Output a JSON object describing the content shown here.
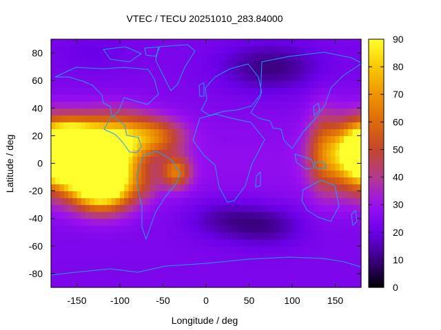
{
  "chart_data": {
    "type": "heatmap",
    "title": "VTEC / TECU 20251010_283.84000",
    "xlabel": "Longitude / deg",
    "ylabel": "Latitude / deg",
    "xlim": [
      -180,
      180
    ],
    "ylim": [
      -90,
      90
    ],
    "xticks": [
      -150,
      -100,
      -50,
      0,
      50,
      100,
      150
    ],
    "yticks": [
      -80,
      -60,
      -40,
      -20,
      0,
      20,
      40,
      60,
      80
    ],
    "x_tick_labels": [
      "-150",
      "-100",
      "-50",
      "0",
      "50",
      "100",
      "150"
    ],
    "y_tick_labels": [
      "-80",
      "-60",
      "-40",
      "-20",
      "0",
      "20",
      "40",
      "60",
      "80"
    ],
    "colorbar": {
      "range": [
        0,
        90
      ],
      "ticks": [
        0,
        10,
        20,
        30,
        40,
        50,
        60,
        70,
        80,
        90
      ],
      "tick_labels": [
        "0",
        "10",
        "20",
        "30",
        "40",
        "50",
        "60",
        "70",
        "80",
        "90"
      ],
      "colors": [
        "#000000",
        "#3a007e",
        "#6a00e8",
        "#9a10f0",
        "#b33a90",
        "#c4462c",
        "#dc6a0a",
        "#ee9500",
        "#f8c800",
        "#ffff2e"
      ]
    },
    "grid": false,
    "legend": "colorbar right",
    "features": [
      {
        "lon": -160,
        "lat": 10,
        "value": 87,
        "sx": 22,
        "sy": 12
      },
      {
        "lon": -130,
        "lat": 4,
        "value": 82,
        "sx": 28,
        "sy": 16
      },
      {
        "lon": -120,
        "lat": -16,
        "value": 74,
        "sx": 24,
        "sy": 12
      },
      {
        "lon": -95,
        "lat": 18,
        "value": 38,
        "sx": 26,
        "sy": 13
      },
      {
        "lon": -55,
        "lat": 20,
        "value": 26,
        "sx": 22,
        "sy": 9
      },
      {
        "lon": -35,
        "lat": -6,
        "value": 36,
        "sx": 12,
        "sy": 8
      },
      {
        "lon": -70,
        "lat": -14,
        "value": 10,
        "sx": 12,
        "sy": 9
      },
      {
        "lon": 172,
        "lat": 6,
        "value": 55,
        "sx": 26,
        "sy": 17
      },
      {
        "lon": 135,
        "lat": 10,
        "value": 18,
        "sx": 12,
        "sy": 22
      },
      {
        "lon": 20,
        "lat": -40,
        "value": -10,
        "sx": 30,
        "sy": 10
      },
      {
        "lon": 70,
        "lat": -45,
        "value": -12,
        "sx": 30,
        "sy": 10
      },
      {
        "lon": 75,
        "lat": 70,
        "value": -14,
        "sx": 40,
        "sy": 12
      },
      {
        "lon": -130,
        "lat": 80,
        "value": -4,
        "sx": 30,
        "sy": 10
      }
    ],
    "background_value": 24,
    "tropical_band_value": 4,
    "lon_step": 5,
    "lat_step": 5
  }
}
